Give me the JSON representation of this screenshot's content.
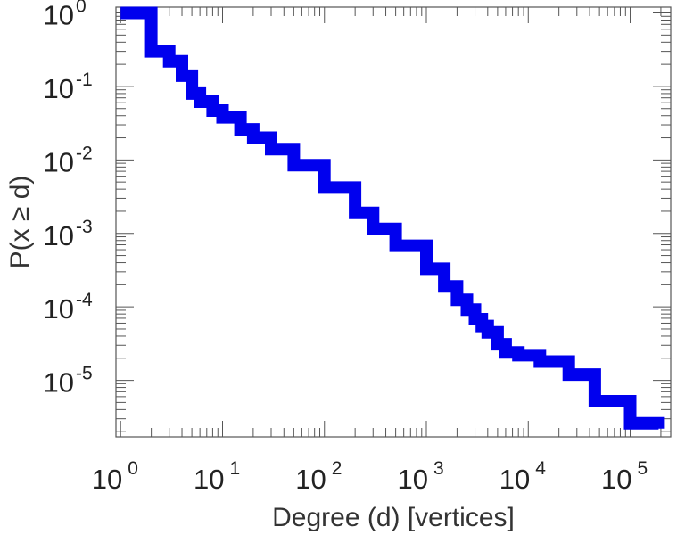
{
  "chart_data": {
    "type": "line",
    "style": "step",
    "xlabel": "Degree (d) [vertices]",
    "ylabel": "P(x ≥ d)",
    "x_scale": "log",
    "y_scale": "log",
    "xlim": [
      0.9,
      250000
    ],
    "ylim": [
      1.7e-06,
      1.2
    ],
    "grid": false,
    "line_color": "#0000ee",
    "x_ticks": [
      {
        "base": "10",
        "exp": "0"
      },
      {
        "base": "10",
        "exp": "1"
      },
      {
        "base": "10",
        "exp": "2"
      },
      {
        "base": "10",
        "exp": "3"
      },
      {
        "base": "10",
        "exp": "4"
      },
      {
        "base": "10",
        "exp": "5"
      }
    ],
    "y_ticks": [
      {
        "base": "10",
        "exp": "0"
      },
      {
        "base": "10",
        "exp": "-1"
      },
      {
        "base": "10",
        "exp": "-2"
      },
      {
        "base": "10",
        "exp": "-3"
      },
      {
        "base": "10",
        "exp": "-4"
      },
      {
        "base": "10",
        "exp": "-5"
      }
    ],
    "series": [
      {
        "x": [
          1,
          2,
          3,
          4,
          5,
          6,
          8,
          10,
          15,
          20,
          30,
          50,
          100,
          200,
          300,
          500,
          1000,
          1500,
          2000,
          2500,
          3000,
          3500,
          4000,
          5000,
          6000,
          8000,
          13000,
          25000,
          45000,
          100000,
          190000
        ],
        "y": [
          1.0,
          0.3,
          0.22,
          0.14,
          0.08,
          0.062,
          0.047,
          0.038,
          0.026,
          0.02,
          0.014,
          0.0085,
          0.0042,
          0.0019,
          0.00115,
          0.00068,
          0.00033,
          0.00019,
          0.000125,
          9.2e-05,
          6.8e-05,
          5.5e-05,
          4.5e-05,
          3.1e-05,
          2.4e-05,
          2.2e-05,
          1.8e-05,
          1.2e-05,
          5.2e-06,
          2.6e-06,
          2.2e-06
        ]
      }
    ]
  }
}
